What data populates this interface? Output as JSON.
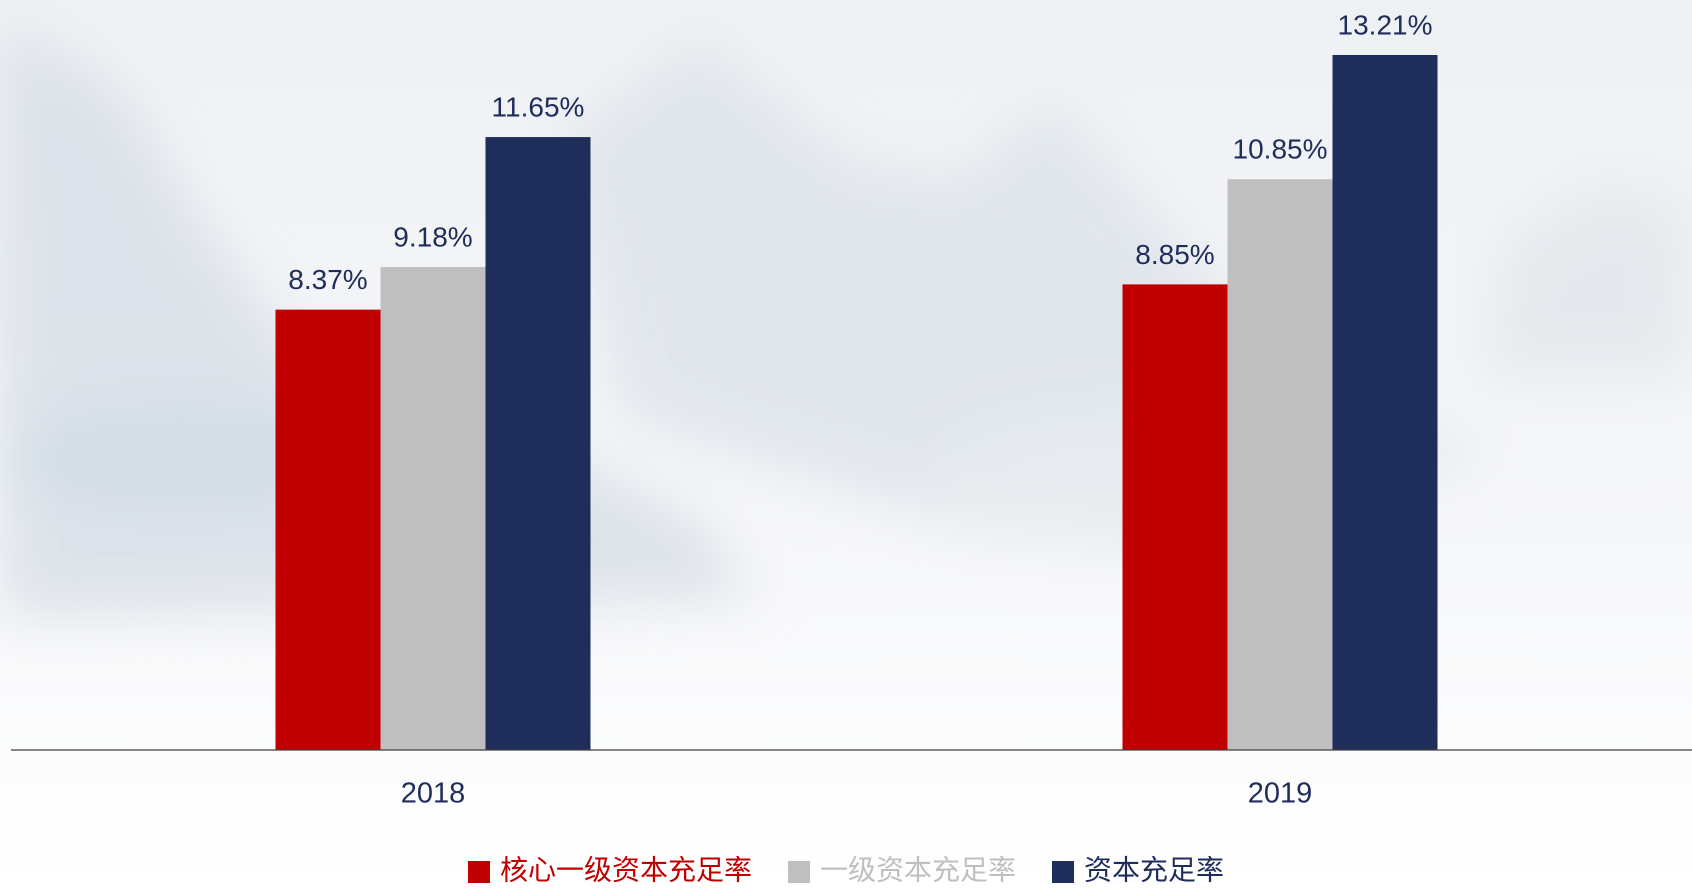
{
  "chart_data": {
    "type": "bar",
    "categories": [
      "2018",
      "2019"
    ],
    "series": [
      {
        "name": "核心一级资本充足率",
        "color": "#c00000",
        "values": [
          8.37,
          8.85
        ],
        "value_labels": [
          "8.37%",
          "8.85%"
        ]
      },
      {
        "name": "一级资本充足率",
        "color": "#bfbfbf",
        "values": [
          9.18,
          10.85
        ],
        "value_labels": [
          "9.18%",
          "10.85%"
        ]
      },
      {
        "name": "资本充足率",
        "color": "#1f2d5a",
        "values": [
          11.65,
          13.21
        ],
        "value_labels": [
          "11.65%",
          "13.21%"
        ]
      }
    ],
    "legend": "bottom"
  }
}
